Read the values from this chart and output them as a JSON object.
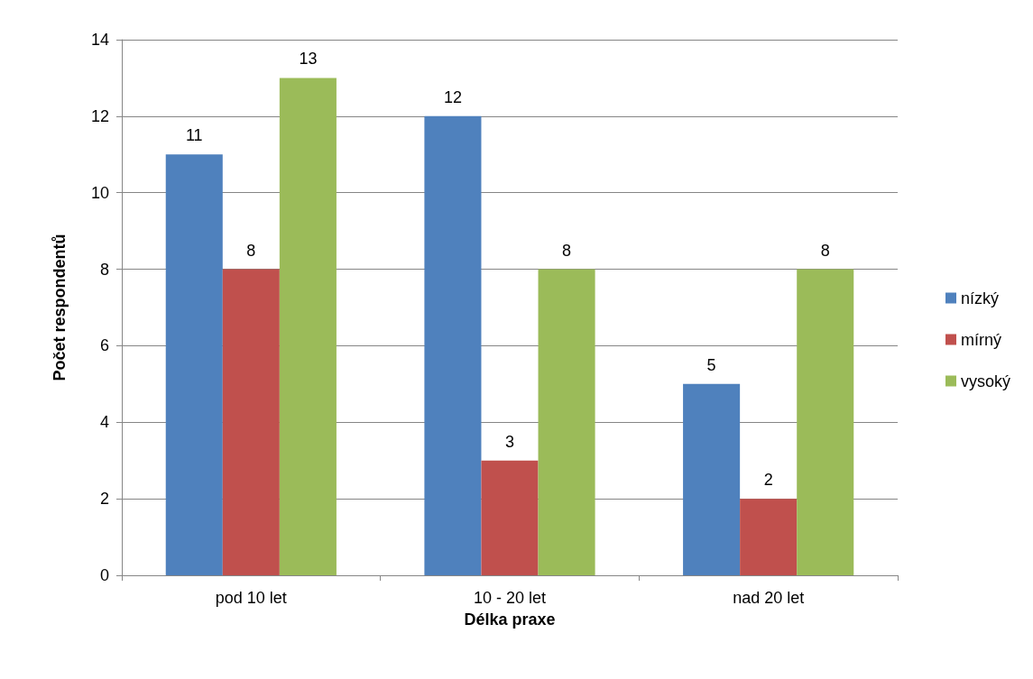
{
  "chart_data": {
    "type": "bar",
    "xlabel": "Délka praxe",
    "ylabel": "Počet respondentů",
    "categories": [
      "pod 10 let",
      "10 - 20 let",
      "nad 20 let"
    ],
    "series": [
      {
        "name": "nízký",
        "color": "#4f81bd",
        "values": [
          11,
          12,
          5
        ]
      },
      {
        "name": "mírný",
        "color": "#c0504d",
        "values": [
          8,
          3,
          2
        ]
      },
      {
        "name": "vysoký",
        "color": "#9bbb59",
        "values": [
          13,
          8,
          8
        ]
      }
    ],
    "ylim": [
      0,
      14
    ],
    "yticks": [
      0,
      2,
      4,
      6,
      8,
      10,
      12,
      14
    ],
    "grid": "y",
    "legend": "right",
    "data_labels": true
  }
}
